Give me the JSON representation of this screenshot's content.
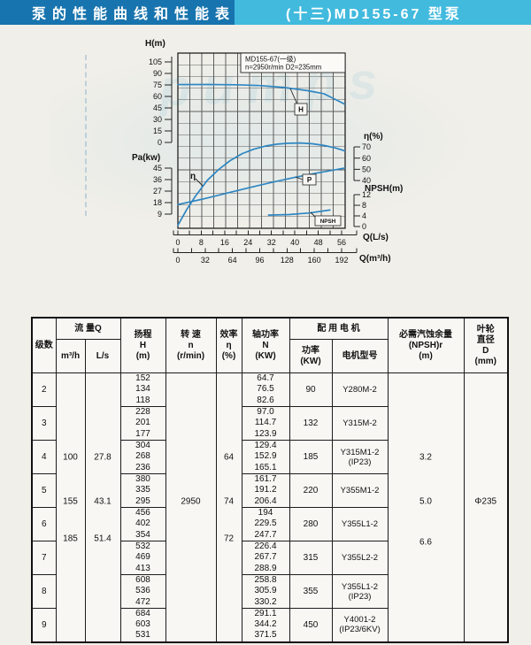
{
  "titlebar": {
    "left_title": "泵的性能曲线和性能表",
    "right_title": "(十三)MD155-67 型泵"
  },
  "watermark": "pumps",
  "chart_data": {
    "type": "line",
    "title_box": [
      "MD155-67(一级)",
      "n=2950r/min  D2=235mm"
    ],
    "grid": true,
    "axes": {
      "h": {
        "label": "H(m)",
        "ticks": [
          105,
          90,
          75,
          60,
          45,
          30,
          15,
          0
        ],
        "range": [
          0,
          120
        ]
      },
      "pa": {
        "label": "Pa(kw)",
        "ticks": [
          45,
          36,
          27,
          18,
          9
        ],
        "range": [
          0,
          50
        ]
      },
      "eta": {
        "label": "η(%)",
        "ticks": [
          70,
          60,
          50,
          40
        ],
        "range": [
          0,
          80
        ]
      },
      "npsh": {
        "label": "NPSH(m)",
        "ticks": [
          12,
          8,
          4,
          0
        ],
        "range": [
          0,
          12
        ]
      },
      "q_ls": {
        "label": "Q(L/s)",
        "ticks": [
          0,
          8,
          16,
          24,
          32,
          40,
          48,
          56
        ],
        "range": [
          0,
          58
        ]
      },
      "q_m3h": {
        "label": "Q(m³/h)",
        "ticks": [
          0,
          32,
          64,
          96,
          128,
          160,
          192
        ],
        "range": [
          0,
          192
        ]
      }
    },
    "series": [
      {
        "name": "H",
        "axis": "h",
        "points": [
          [
            0,
            75.5
          ],
          [
            10,
            75.6
          ],
          [
            20,
            75.2
          ],
          [
            28,
            74.2
          ],
          [
            36,
            71.8
          ],
          [
            44,
            67.8
          ],
          [
            50,
            63.5
          ],
          [
            57,
            50
          ]
        ]
      },
      {
        "name": "η",
        "axis": "eta",
        "points": [
          [
            0,
            0
          ],
          [
            3,
            14
          ],
          [
            6,
            26
          ],
          [
            10,
            40
          ],
          [
            14,
            50
          ],
          [
            18,
            58
          ],
          [
            22,
            64
          ],
          [
            26,
            68
          ],
          [
            30,
            70.8
          ],
          [
            34,
            72.5
          ],
          [
            38,
            73.3
          ],
          [
            42,
            73.5
          ],
          [
            46,
            72.8
          ],
          [
            50,
            71.3
          ],
          [
            54,
            69
          ],
          [
            57,
            66.5
          ]
        ]
      },
      {
        "name": "P",
        "axis": "pa",
        "points": [
          [
            0,
            16.5
          ],
          [
            8,
            20.5
          ],
          [
            16,
            25
          ],
          [
            24,
            29.5
          ],
          [
            32,
            33.8
          ],
          [
            40,
            37.8
          ],
          [
            48,
            41.3
          ],
          [
            57,
            45
          ]
        ]
      },
      {
        "name": "NPSH",
        "axis": "npsh",
        "points": [
          [
            31,
            4.3
          ],
          [
            38,
            4.5
          ],
          [
            45,
            5.1
          ],
          [
            52,
            6.2
          ]
        ]
      }
    ]
  },
  "table": {
    "headers": {
      "stage": "级数",
      "flow_group": "流 量Q",
      "flow_m3h": "m³/h",
      "flow_ls": "L/s",
      "head": "扬程\nH\n(m)",
      "speed": "转 速\nn\n(r/min)",
      "efficiency": "效率\nη\n(%)",
      "shaft_power": "轴功率\nN\n(KW)",
      "motor_group": "配 用 电 机",
      "motor_power": "功率\n(KW)",
      "motor_model": "电机型号",
      "npsh": "必需汽蚀余量\n(NPSH)r\n(m)",
      "impeller": "叶轮\n直径\nD\n(mm)"
    },
    "merged": {
      "flow_m3h": [
        "100",
        "155",
        "185"
      ],
      "flow_ls": [
        "27.8",
        "43.1",
        "51.4"
      ],
      "speed": "2950",
      "efficiency": [
        "64",
        "74",
        "72"
      ],
      "npsh": [
        "3.2",
        "5.0",
        "6.6"
      ],
      "impeller": "Φ235"
    },
    "rows": [
      {
        "stage": "2",
        "head": [
          "152",
          "134",
          "118"
        ],
        "shaft_power": [
          "64.7",
          "76.5",
          "82.6"
        ],
        "motor_kw": "90",
        "motor_model": "Y280M-2"
      },
      {
        "stage": "3",
        "head": [
          "228",
          "201",
          "177"
        ],
        "shaft_power": [
          "97.0",
          "114.7",
          "123.9"
        ],
        "motor_kw": "132",
        "motor_model": "Y315M-2"
      },
      {
        "stage": "4",
        "head": [
          "304",
          "268",
          "236"
        ],
        "shaft_power": [
          "129.4",
          "152.9",
          "165.1"
        ],
        "motor_kw": "185",
        "motor_model": "Y315M1-2\n(IP23)"
      },
      {
        "stage": "5",
        "head": [
          "380",
          "335",
          "295"
        ],
        "shaft_power": [
          "161.7",
          "191.2",
          "206.4"
        ],
        "motor_kw": "220",
        "motor_model": "Y355M1-2"
      },
      {
        "stage": "6",
        "head": [
          "456",
          "402",
          "354"
        ],
        "shaft_power": [
          "194",
          "229.5",
          "247.7"
        ],
        "motor_kw": "280",
        "motor_model": "Y355L1-2"
      },
      {
        "stage": "7",
        "head": [
          "532",
          "469",
          "413"
        ],
        "shaft_power": [
          "226.4",
          "267.7",
          "288.9"
        ],
        "motor_kw": "315",
        "motor_model": "Y355L2-2"
      },
      {
        "stage": "8",
        "head": [
          "608",
          "536",
          "472"
        ],
        "shaft_power": [
          "258.8",
          "305.9",
          "330.2"
        ],
        "motor_kw": "355",
        "motor_model": "Y355L1-2\n(IP23)"
      },
      {
        "stage": "9",
        "head": [
          "684",
          "603",
          "531"
        ],
        "shaft_power": [
          "291.1",
          "344.2",
          "371.5"
        ],
        "motor_kw": "450",
        "motor_model": "Y4001-2\n(IP23/6KV)"
      }
    ]
  }
}
